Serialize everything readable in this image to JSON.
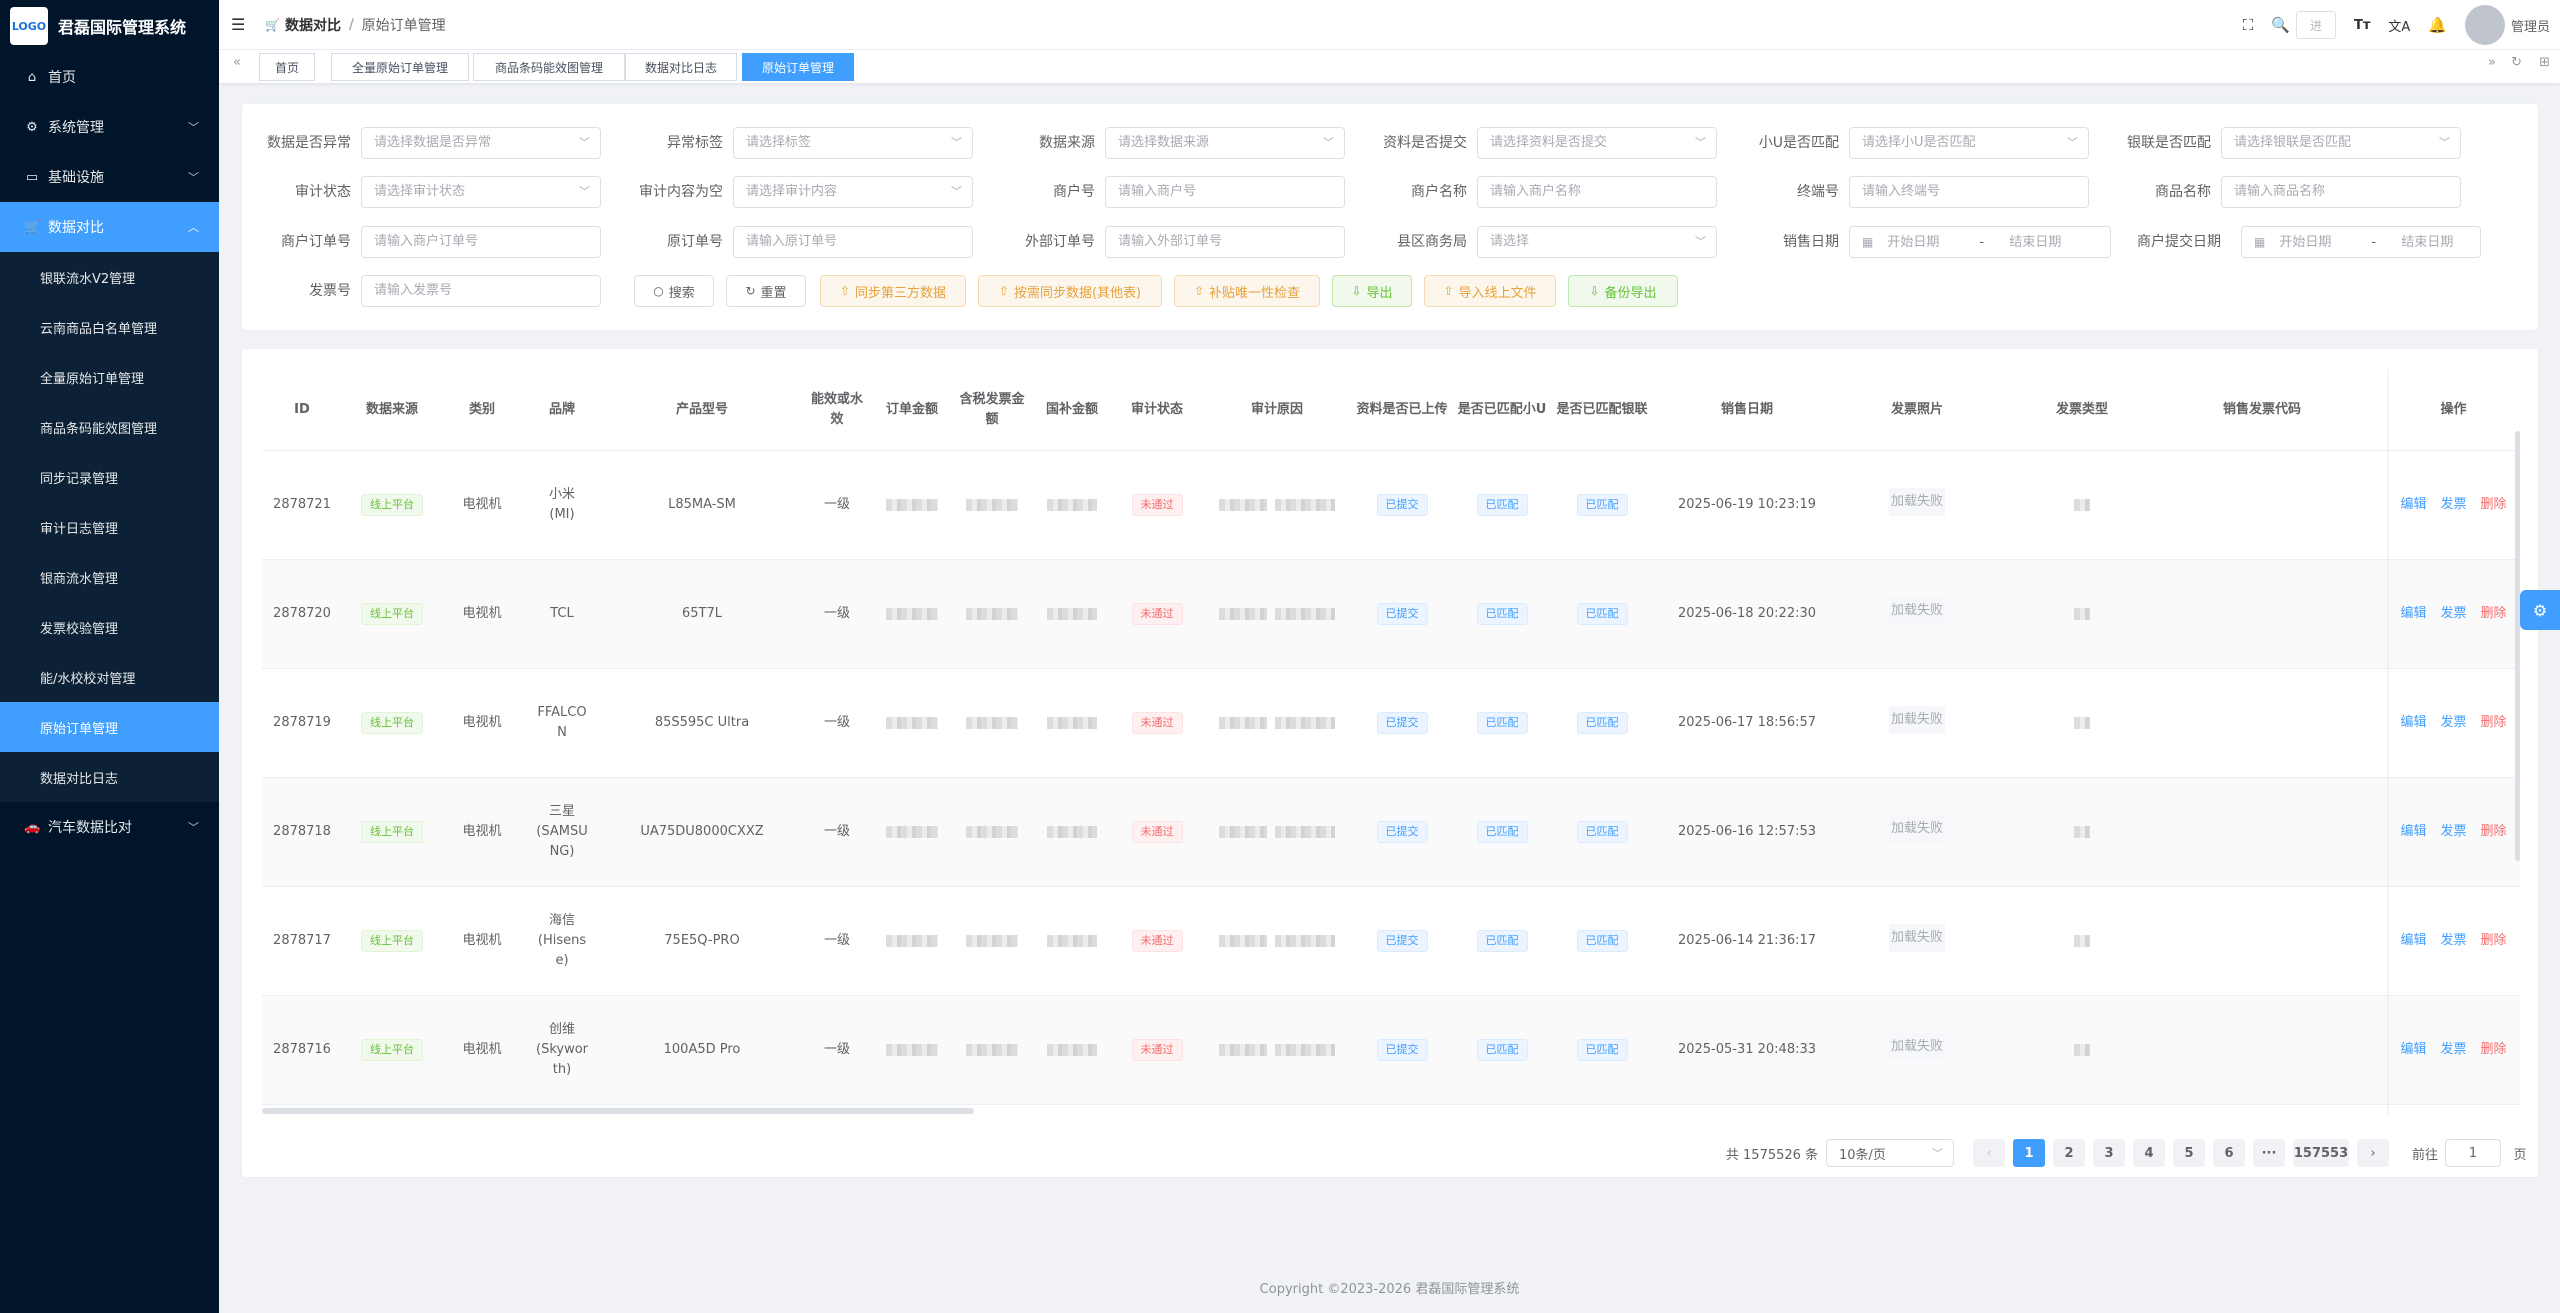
{
  "app": {
    "title": "君磊国际管理系统",
    "logo_text": "LOGO"
  },
  "sidebar": {
    "items": [
      {
        "label": "首页",
        "icon": "home-icon"
      },
      {
        "label": "系统管理",
        "icon": "gear-icon"
      },
      {
        "label": "基础设施",
        "icon": "monitor-icon"
      },
      {
        "label": "数据对比",
        "icon": "cart-icon"
      }
    ],
    "sub_items": [
      "银联流水V2管理",
      "云南商品白名单管理",
      "全量原始订单管理",
      "商品条码能效图管理",
      "同步记录管理",
      "审计日志管理",
      "银商流水管理",
      "发票校验管理",
      "能/水校校对管理",
      "原始订单管理",
      "数据对比日志"
    ],
    "last": {
      "label": "汽车数据比对",
      "icon": "car-icon"
    }
  },
  "header": {
    "crumb1": "数据对比",
    "crumb_sep": "/",
    "crumb2": "原始订单管理",
    "search_placeholder": "进",
    "user": "管理员"
  },
  "tags": [
    "首页",
    "全量原始订单管理",
    "商品条码能效图管理",
    "数据对比日志",
    "原始订单管理"
  ],
  "filters": {
    "r1": [
      {
        "label": "数据是否异常",
        "ph": "请选择数据是否异常"
      },
      {
        "label": "异常标签",
        "ph": "请选择标签"
      },
      {
        "label": "数据来源",
        "ph": "请选择数据来源"
      },
      {
        "label": "资料是否提交",
        "ph": "请选择资料是否提交"
      },
      {
        "label": "小U是否匹配",
        "ph": "请选择小U是否匹配"
      },
      {
        "label": "银联是否匹配",
        "ph": "请选择银联是否匹配"
      }
    ],
    "r2": [
      {
        "label": "审计状态",
        "ph": "请选择审计状态"
      },
      {
        "label": "审计内容为空",
        "ph": "请选择审计内容"
      },
      {
        "label": "商户号",
        "ph": "请输入商户号"
      },
      {
        "label": "商户名称",
        "ph": "请输入商户名称"
      },
      {
        "label": "终端号",
        "ph": "请输入终端号"
      },
      {
        "label": "商品名称",
        "ph": "请输入商品名称"
      }
    ],
    "r3": [
      {
        "label": "商户订单号",
        "ph": "请输入商户订单号"
      },
      {
        "label": "原订单号",
        "ph": "请输入原订单号"
      },
      {
        "label": "外部订单号",
        "ph": "请输入外部订单号"
      },
      {
        "label": "县区商务局",
        "ph": "请选择"
      }
    ],
    "sale_date": {
      "label": "销售日期",
      "start": "开始日期",
      "sep": "-",
      "end": "结束日期"
    },
    "submit_date": {
      "label": "商户提交日期",
      "start": "开始日期",
      "sep": "-",
      "end": "结束日期"
    },
    "invoice": {
      "label": "发票号",
      "ph": "请输入发票号"
    }
  },
  "buttons": {
    "search": "搜索",
    "reset": "重置",
    "sync3": "同步第三方数据",
    "sync_other": "按需同步数据(其他表)",
    "patch": "补贴唯一性检查",
    "export": "导出",
    "import": "导入线上文件",
    "backup": "备份导出"
  },
  "table": {
    "headers": [
      "ID",
      "数据来源",
      "类别",
      "品牌",
      "产品型号",
      "能效或水效",
      "订单金额",
      "含税发票金额",
      "国补金额",
      "审计状态",
      "审计原因",
      "资料是否已上传",
      "是否已匹配小U",
      "是否已匹配银联",
      "销售日期",
      "发票照片",
      "发票类型",
      "销售发票代码",
      "操作"
    ],
    "rows": [
      {
        "id": "2878721",
        "source": "线上平台",
        "cat": "电视机",
        "brand": "小米\n(MI)",
        "model": "L85MA-SM",
        "eff": "一级",
        "audit": "未通过",
        "upload": "已提交",
        "xiaou": "已匹配",
        "unionpay": "已匹配",
        "date": "2025-06-19 10:23:19",
        "photo": "加载失败"
      },
      {
        "id": "2878720",
        "source": "线上平台",
        "cat": "电视机",
        "brand": "TCL",
        "model": "65T7L",
        "eff": "一级",
        "audit": "未通过",
        "upload": "已提交",
        "xiaou": "已匹配",
        "unionpay": "已匹配",
        "date": "2025-06-18 20:22:30",
        "photo": "加载失败"
      },
      {
        "id": "2878719",
        "source": "线上平台",
        "cat": "电视机",
        "brand": "FFALCON",
        "model": "85S595C Ultra",
        "eff": "一级",
        "audit": "未通过",
        "upload": "已提交",
        "xiaou": "已匹配",
        "unionpay": "已匹配",
        "date": "2025-06-17 18:56:57",
        "photo": "加载失败"
      },
      {
        "id": "2878718",
        "source": "线上平台",
        "cat": "电视机",
        "brand": "三星\n(SAMSUNG)",
        "model": "UA75DU8000CXXZ",
        "eff": "一级",
        "audit": "未通过",
        "upload": "已提交",
        "xiaou": "已匹配",
        "unionpay": "已匹配",
        "date": "2025-06-16 12:57:53",
        "photo": "加载失败"
      },
      {
        "id": "2878717",
        "source": "线上平台",
        "cat": "电视机",
        "brand": "海信\n(Hisense)",
        "model": "75E5Q-PRO",
        "eff": "一级",
        "audit": "未通过",
        "upload": "已提交",
        "xiaou": "已匹配",
        "unionpay": "已匹配",
        "date": "2025-06-14 21:36:17",
        "photo": "加载失败"
      },
      {
        "id": "2878716",
        "source": "线上平台",
        "cat": "电视机",
        "brand": "创维\n(Skyworth)",
        "model": "100A5D Pro",
        "eff": "一级",
        "audit": "未通过",
        "upload": "已提交",
        "xiaou": "已匹配",
        "unionpay": "已匹配",
        "date": "2025-05-31 20:48:33",
        "photo": "加载失败"
      }
    ],
    "ops": {
      "edit": "编辑",
      "invoice": "发票",
      "delete": "删除"
    }
  },
  "pager": {
    "total": "共 1575526 条",
    "size": "10条/页",
    "pages": [
      "1",
      "2",
      "3",
      "4",
      "5",
      "6"
    ],
    "more": "···",
    "last": "157553",
    "goto": "前往",
    "goto_val": "1",
    "page_unit": "页"
  },
  "footer": "Copyright ©2023-2026 君磊国际管理系统"
}
